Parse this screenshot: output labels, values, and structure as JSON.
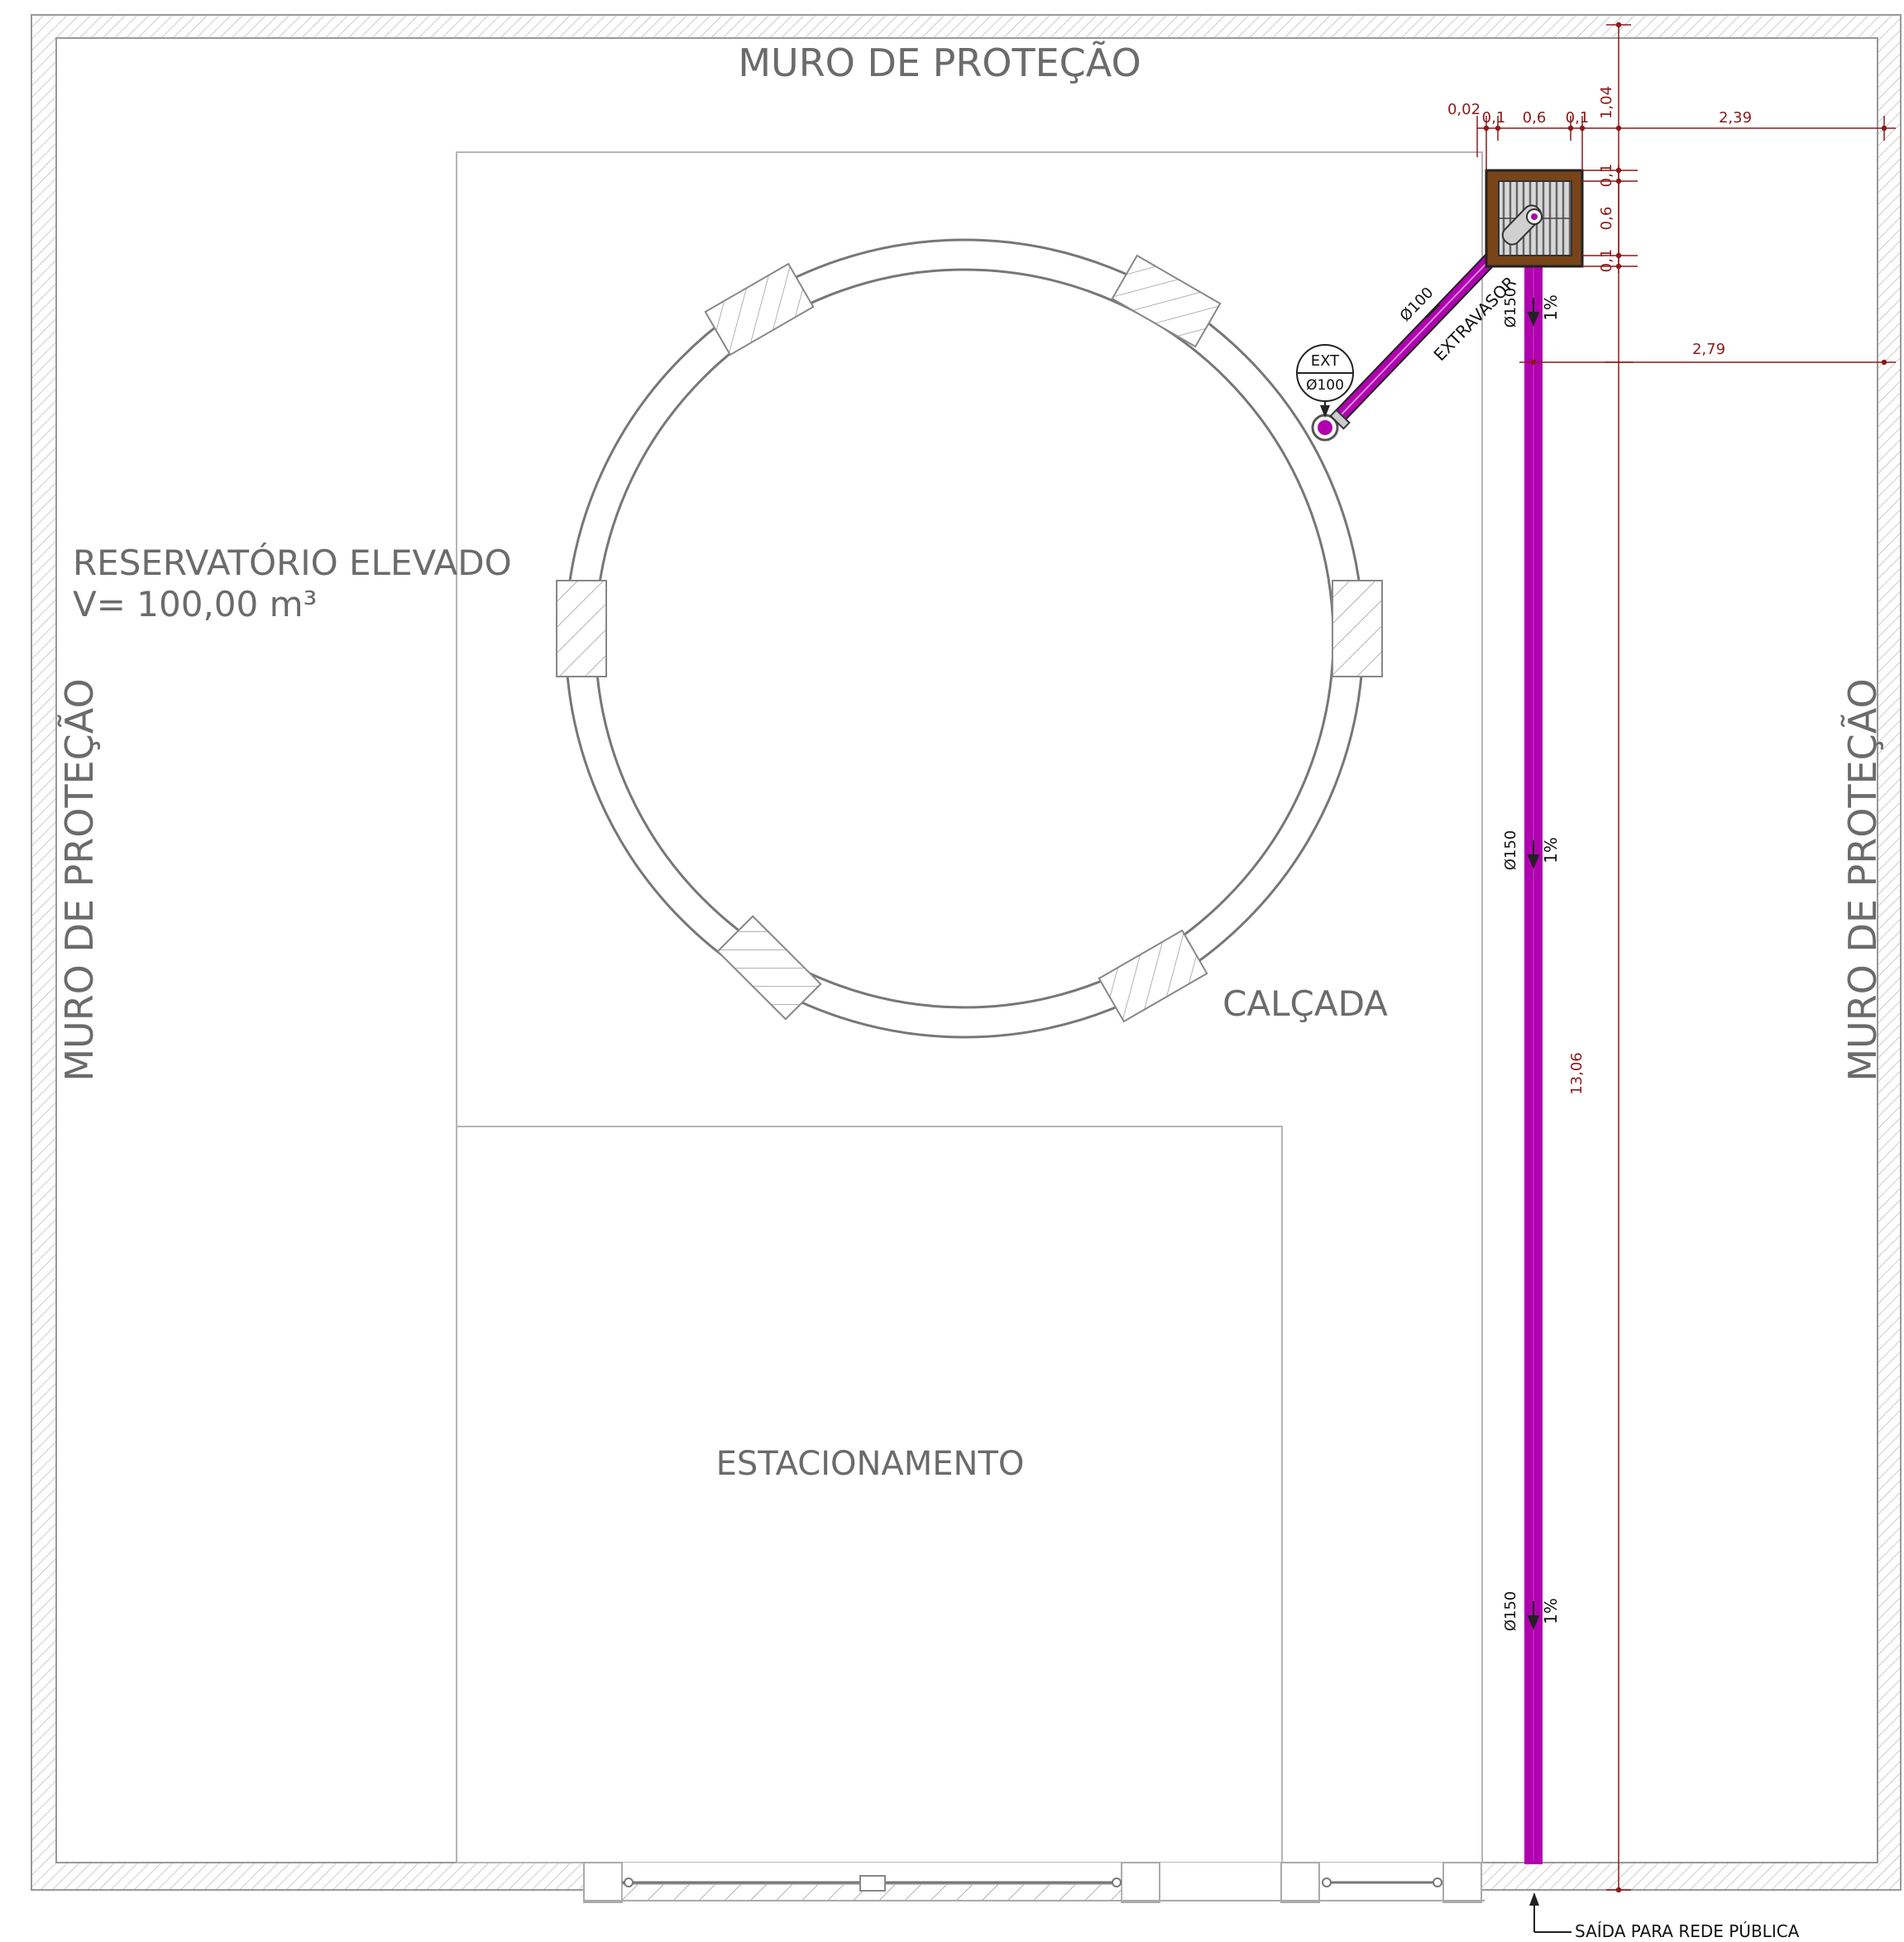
{
  "labels": {
    "wall_top": "MURO DE PROTEÇÃO",
    "wall_left": "MURO DE PROTEÇÃO",
    "wall_right": "MURO DE PROTEÇÃO",
    "reservoir_name": "RESERVATÓRIO ELEVADO",
    "reservoir_volume": "V= 100,00 m³",
    "sidewalk": "CALÇADA",
    "parking": "ESTACIONAMENTO",
    "exit": "SAÍDA PARA REDE PÚBLICA",
    "overflow": "EXTRAVASOR"
  },
  "pipes": {
    "overflow_diameter": "Ø100",
    "main_diameter": "Ø150",
    "slope": "1%",
    "tag_top": "EXT",
    "tag_bottom": "Ø100"
  },
  "dimensions": {
    "d_002": "0,02",
    "d_01_a": "0,1",
    "d_06_a": "0,6",
    "d_01_b": "0,1",
    "d_104": "1,04",
    "d_239": "2,39",
    "d_01_c": "0,1",
    "d_06_b": "0,6",
    "d_01_d": "0,1",
    "d_279": "2,79",
    "d_1306": "13,06"
  },
  "colors": {
    "pipe": "#b000b0",
    "box": "#7a4419",
    "dimension": "#8b1a1a",
    "wall_line": "#999999",
    "text": "#6b6b6b"
  }
}
